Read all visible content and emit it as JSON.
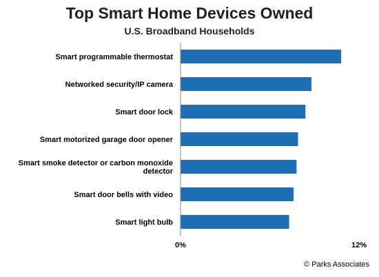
{
  "chart_data": {
    "type": "bar",
    "orientation": "horizontal",
    "title": "Top Smart Home Devices Owned",
    "subtitle": "U.S. Broadband Households",
    "categories": [
      "Smart programmable thermostat",
      "Networked security/IP camera",
      "Smart door lock",
      "Smart motorized garage door opener",
      "Smart smoke detector or carbon monoxide detector",
      "Smart door bells with video",
      "Smart light bulb"
    ],
    "values": [
      10.8,
      8.8,
      8.4,
      7.9,
      7.8,
      7.6,
      7.3
    ],
    "unit": "%",
    "xlim": [
      0,
      12
    ],
    "x_ticks": [
      "0%",
      "12%"
    ],
    "grid": false,
    "legend": "none",
    "bar_color": "#1f6fb5"
  },
  "source": "© Parks Associates"
}
